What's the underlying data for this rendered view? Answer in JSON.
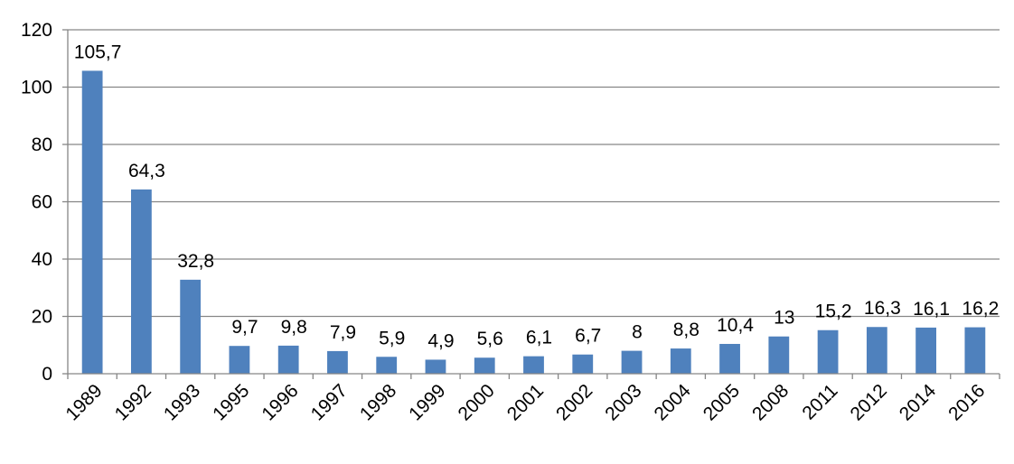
{
  "chart_data": {
    "type": "bar",
    "categories": [
      "1989",
      "1992",
      "1993",
      "1995",
      "1996",
      "1997",
      "1998",
      "1999",
      "2000",
      "2001",
      "2002",
      "2003",
      "2004",
      "2005",
      "2008",
      "2011",
      "2012",
      "2014",
      "2016"
    ],
    "values": [
      105.7,
      64.3,
      32.8,
      9.7,
      9.8,
      7.9,
      5.9,
      4.9,
      5.6,
      6.1,
      6.7,
      8,
      8.8,
      10.4,
      13,
      15.2,
      16.3,
      16.1,
      16.2
    ],
    "value_labels": [
      "105,7",
      "64,3",
      "32,8",
      "9,7",
      "9,8",
      "7,9",
      "5,9",
      "4,9",
      "5,6",
      "6,1",
      "6,7",
      "8",
      "8,8",
      "10,4",
      "13",
      "15,2",
      "16,3",
      "16,1",
      "16,2"
    ],
    "y_ticks": [
      "0",
      "20",
      "40",
      "60",
      "80",
      "100",
      "120"
    ],
    "ylim": [
      0,
      120
    ],
    "grid": true,
    "bar_color": "#4F81BD",
    "grid_color": "#868686",
    "axis_color": "#868686"
  }
}
